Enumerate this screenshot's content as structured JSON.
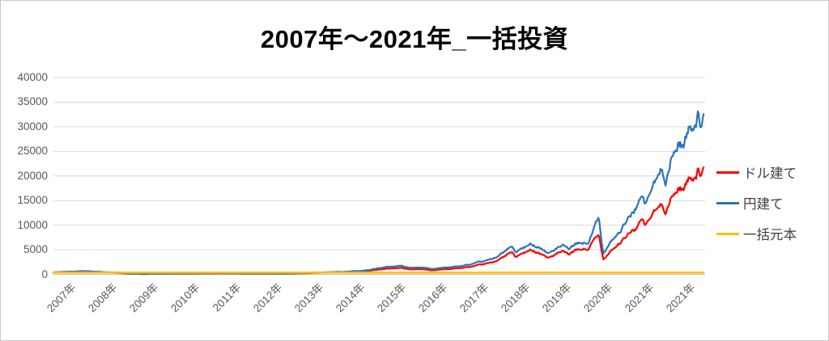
{
  "title": "2007年〜2021年_一括投資",
  "chart_data": {
    "type": "line",
    "title": "2007年〜2021年_一括投資",
    "xlabel": "",
    "ylabel": "",
    "grid": true,
    "legend_position": "right",
    "y_axis": {
      "min": 0,
      "max": 40000,
      "step": 5000
    },
    "x_axis": {
      "labels": [
        "2007年",
        "2008年",
        "2009年",
        "2010年",
        "2011年",
        "2012年",
        "2013年",
        "2014年",
        "2015年",
        "2016年",
        "2017年",
        "2018年",
        "2019年",
        "2020年",
        "2021年",
        "2021年"
      ]
    },
    "series": [
      {
        "name": "ドル建て",
        "color": "#FF0000",
        "values_key": "dollar"
      },
      {
        "name": "円建て",
        "color": "#2E75B6",
        "values_key": "yen"
      },
      {
        "name": "一括元本",
        "color": "#FFC000",
        "constant_value": 350
      }
    ],
    "anchor_points": {
      "t_years_from_2007": [
        0,
        0.3,
        0.6,
        0.8,
        1.0,
        1.3,
        1.6,
        1.75,
        1.9,
        2.2,
        2.5,
        3.0,
        3.5,
        4.0,
        4.6,
        5.0,
        5.6,
        6.0,
        6.3,
        6.6,
        7.0,
        7.5,
        7.9,
        8.0,
        8.4,
        8.6,
        8.8,
        9.0,
        9.15,
        9.4,
        9.6,
        9.8,
        10.0,
        10.3,
        10.6,
        10.9,
        11.0,
        11.08,
        11.15,
        11.35,
        11.55,
        11.7,
        11.85,
        11.95,
        12.1,
        12.3,
        12.45,
        12.6,
        12.8,
        12.9,
        13.0,
        13.1,
        13.17,
        13.28,
        13.45,
        13.6,
        13.75,
        13.85,
        13.95,
        14.05,
        14.2,
        14.3,
        14.45,
        14.6,
        14.7,
        14.78,
        14.9,
        15.0,
        15.1,
        15.2,
        15.35,
        15.5,
        15.58,
        15.65,
        15.7
      ],
      "dollar": [
        390,
        500,
        610,
        650,
        530,
        390,
        280,
        150,
        110,
        70,
        120,
        140,
        160,
        180,
        150,
        160,
        130,
        200,
        280,
        360,
        440,
        640,
        1000,
        1100,
        1330,
        1020,
        1060,
        980,
        840,
        1020,
        1130,
        1250,
        1450,
        1850,
        2400,
        3600,
        4200,
        4450,
        3500,
        4300,
        4900,
        4600,
        3900,
        3300,
        4000,
        4550,
        4000,
        4800,
        5100,
        5000,
        6300,
        7300,
        7700,
        3100,
        4900,
        5800,
        6900,
        7700,
        8600,
        9300,
        10800,
        10000,
        12000,
        13300,
        14200,
        13300,
        15200,
        16300,
        17800,
        17200,
        19200,
        20500,
        21500,
        20300,
        20800
      ],
      "yen": [
        380,
        520,
        640,
        680,
        560,
        420,
        300,
        160,
        120,
        80,
        140,
        170,
        190,
        210,
        170,
        190,
        150,
        240,
        330,
        420,
        520,
        750,
        1300,
        1450,
        1750,
        1350,
        1400,
        1300,
        1100,
        1350,
        1500,
        1650,
        1900,
        2400,
        3100,
        4600,
        5300,
        5600,
        4400,
        5400,
        6100,
        5800,
        4900,
        4200,
        5000,
        5700,
        5100,
        6000,
        6400,
        6200,
        7800,
        10300,
        11200,
        4300,
        6800,
        8000,
        9500,
        10600,
        12000,
        13500,
        15500,
        14200,
        17500,
        19800,
        21000,
        19600,
        22500,
        24500,
        27000,
        26000,
        29500,
        31500,
        33300,
        30000,
        31000
      ]
    }
  },
  "colors": {
    "gridline": "#D9D9D9",
    "axis_line": "#BFBFBF",
    "tick_label": "#595959",
    "legend_text": "#404040",
    "title": "#000000",
    "background": "#FFFFFF"
  }
}
